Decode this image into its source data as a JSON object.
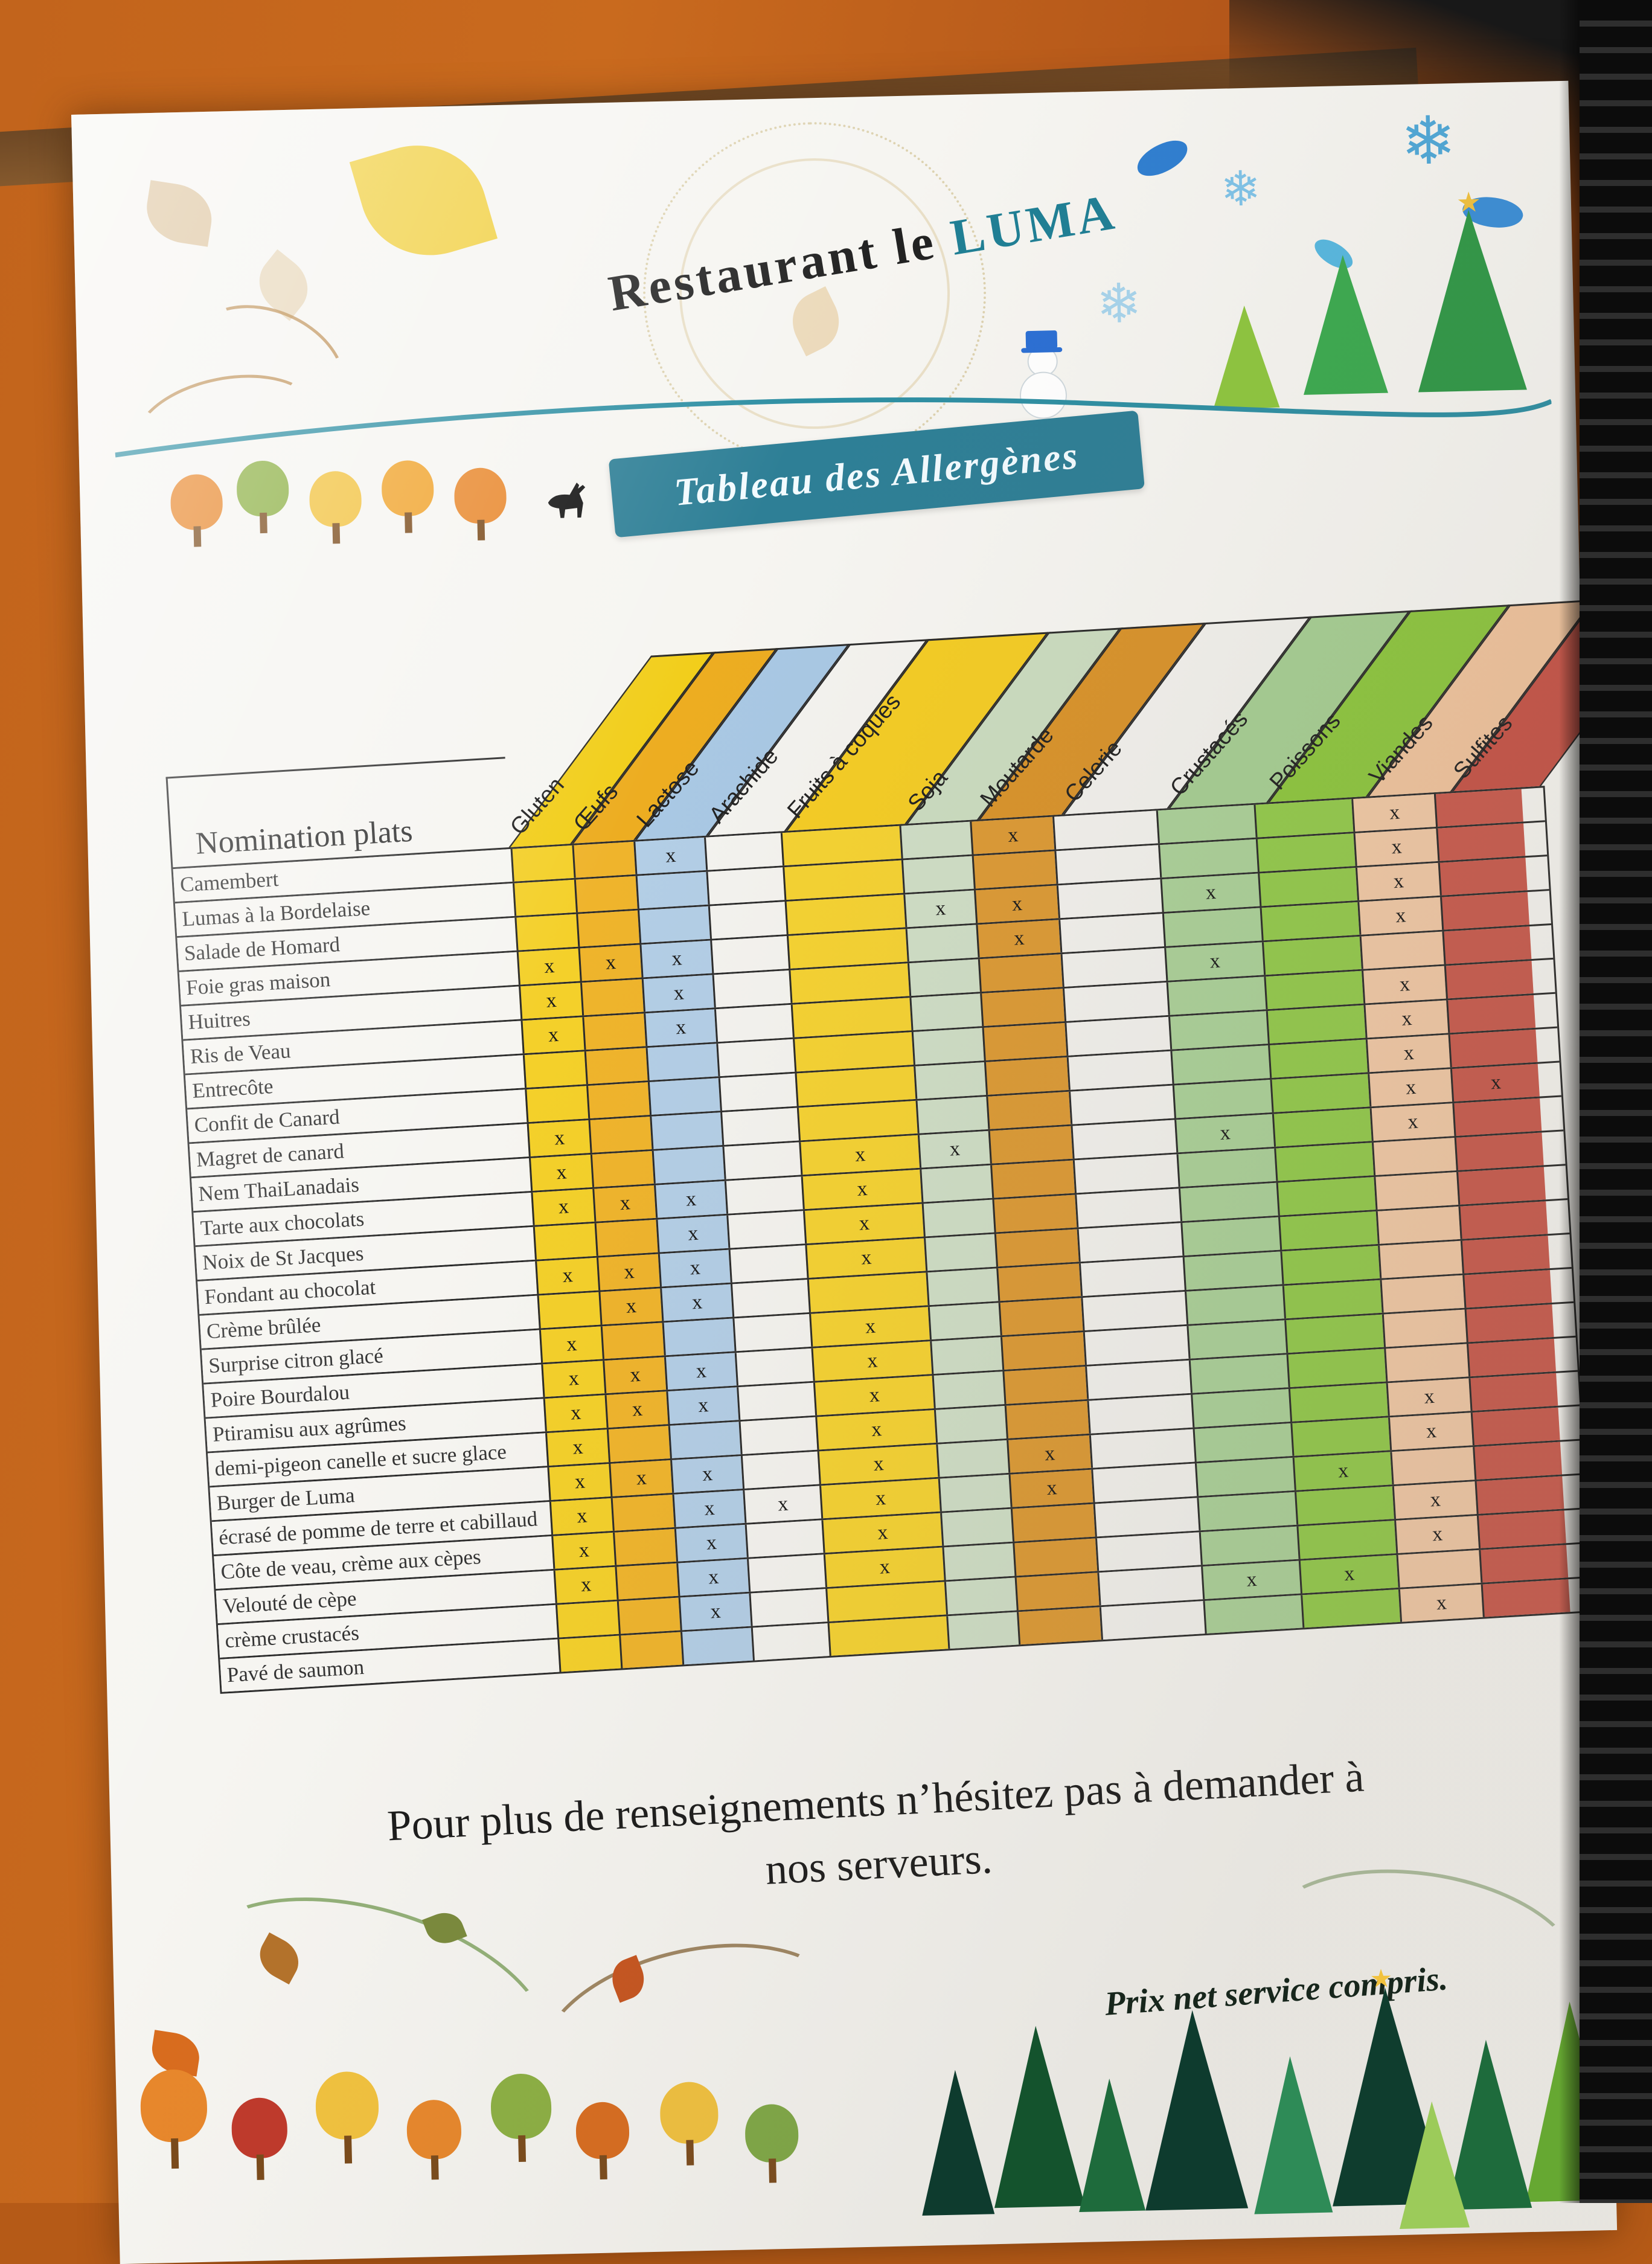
{
  "photo": {
    "table_surface_color": "#c2641c",
    "binder_color": "#111111",
    "paper_color": "#f6f5f1",
    "accent_teal": "#2e7f96"
  },
  "header": {
    "title_prefix": "Restaurant le ",
    "title_name": "LUMA",
    "banner_label": "Tableau des Allergènes",
    "snowflake_glyph": "❄",
    "star_glyph": "★"
  },
  "table": {
    "corner_label": "Nomination plats",
    "x_mark": "x",
    "widths": [
      105,
      105,
      120,
      130,
      200,
      120,
      140,
      175,
      165,
      165,
      140,
      148
    ],
    "columns": [
      {
        "label": "Gluten",
        "color": "#f2ce1b",
        "body": "#f4d02a"
      },
      {
        "label": "Œufs",
        "color": "#edad21",
        "body": "#efb42c"
      },
      {
        "label": "Lactose",
        "color": "#a9c8e4",
        "body": "#b3cee6"
      },
      {
        "label": "Arachide",
        "color": "#f4f3ef",
        "body": "#f4f3ef"
      },
      {
        "label": "Fruits à coques",
        "color": "#f4cc25",
        "body": "#f5d232"
      },
      {
        "label": "Soja",
        "color": "#cbdcc0",
        "body": "#cfdec6"
      },
      {
        "label": "Moutarde",
        "color": "#d9932b",
        "body": "#dc9a35"
      },
      {
        "label": "Celerie",
        "color": "#f2f1ed",
        "body": "#f2f1ed"
      },
      {
        "label": "Crustacés",
        "color": "#a6ce93",
        "body": "#abd199"
      },
      {
        "label": "Poissons",
        "color": "#8dc63f",
        "body": "#93ca4c"
      },
      {
        "label": "Viandes",
        "color": "#f0c49e",
        "body": "#f1c9a6"
      },
      {
        "label": "Sulfites",
        "color": "#c65448",
        "body": "#c95b4e"
      }
    ],
    "rows": [
      {
        "name": "Camembert",
        "marks": [
          2,
          6,
          10
        ]
      },
      {
        "name": "Lumas à la Bordelaise",
        "marks": [
          10
        ]
      },
      {
        "name": "Salade de Homard",
        "marks": [
          5,
          6,
          8,
          10
        ]
      },
      {
        "name": "Foie gras maison",
        "marks": [
          0,
          1,
          2,
          6,
          10
        ]
      },
      {
        "name": "Huitres",
        "marks": [
          0,
          2,
          8
        ]
      },
      {
        "name": "Ris de Veau",
        "marks": [
          0,
          2,
          10
        ]
      },
      {
        "name": "Entrecôte",
        "marks": [
          10
        ]
      },
      {
        "name": "Confit de Canard",
        "marks": [
          10
        ]
      },
      {
        "name": "Magret de canard",
        "marks": [
          0,
          10,
          11
        ]
      },
      {
        "name": "Nem ThaiLanadais",
        "marks": [
          0,
          4,
          5,
          8,
          10
        ]
      },
      {
        "name": "Tarte aux chocolats",
        "marks": [
          0,
          1,
          2,
          4
        ]
      },
      {
        "name": "Noix de St Jacques",
        "marks": [
          2,
          4
        ]
      },
      {
        "name": "Fondant au chocolat",
        "marks": [
          0,
          1,
          2,
          4
        ]
      },
      {
        "name": "Crème brûlée",
        "marks": [
          1,
          2
        ]
      },
      {
        "name": "Surprise citron glacé",
        "marks": [
          0,
          4
        ]
      },
      {
        "name": "Poire Bourdalou",
        "marks": [
          0,
          1,
          2,
          4
        ]
      },
      {
        "name": "Ptiramisu aux agrûmes",
        "marks": [
          0,
          1,
          2,
          4
        ]
      },
      {
        "name": "demi-pigeon canelle et sucre glace",
        "marks": [
          0,
          4,
          10
        ]
      },
      {
        "name": "Burger de Luma",
        "marks": [
          0,
          1,
          2,
          4,
          6,
          10
        ]
      },
      {
        "name": "écrasé de pomme de terre et cabillaud",
        "marks": [
          0,
          2,
          3,
          4,
          6,
          9
        ]
      },
      {
        "name": "Côte de veau, crème aux cèpes",
        "marks": [
          0,
          2,
          4,
          10
        ]
      },
      {
        "name": "Velouté de cèpe",
        "marks": [
          0,
          2,
          4,
          10
        ]
      },
      {
        "name": "crème crustacés",
        "marks": [
          2,
          8,
          9
        ]
      },
      {
        "name": "Pavé de saumon",
        "marks": [
          10
        ]
      }
    ]
  },
  "footer": {
    "note_line1": "Pour plus de renseignements n’hésitez pas à demander à",
    "note_line2": "nos serveurs.",
    "price_note": "Prix net service compris."
  }
}
